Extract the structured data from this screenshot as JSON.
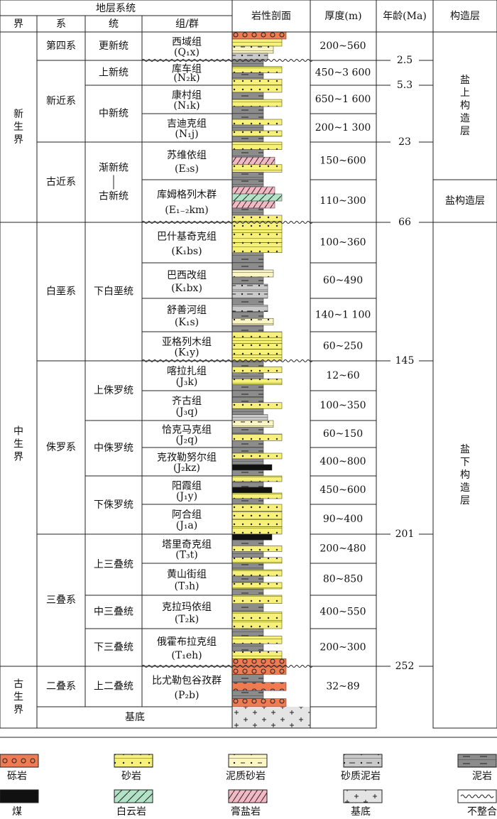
{
  "header": {
    "group": "地层系统",
    "erathem": "界",
    "system": "系",
    "series": "统",
    "formation": "组/群",
    "lithology": "岩性剖面",
    "thickness": "厚度(m)",
    "age": "年龄(Ma)",
    "tectonic": "构造层"
  },
  "erathems": [
    {
      "name": "新生界",
      "systems": [
        {
          "name": "第四系",
          "series": [
            {
              "name": [
                "更新统"
              ],
              "formations": [
                {
                  "name": "西域组",
                  "code": "(Q₁x)",
                  "thickness": "200~560",
                  "base_age": "2.5"
                }
              ]
            }
          ]
        },
        {
          "name": "新近系",
          "series": [
            {
              "name": [
                "上新统"
              ],
              "formations": [
                {
                  "name": "库车组",
                  "code": "(N₂k)",
                  "thickness": "450~3 600",
                  "base_age": "5.3"
                }
              ]
            },
            {
              "name": [
                "中新统"
              ],
              "formations": [
                {
                  "name": "康村组",
                  "code": "(N₁k)",
                  "thickness": "650~1 600"
                },
                {
                  "name": "吉迪克组",
                  "code": "(N₁j)",
                  "thickness": "200~1 300",
                  "base_age": "23"
                }
              ]
            }
          ]
        },
        {
          "name": "古近系",
          "series": [
            {
              "name": [
                "渐新统",
                "古新统"
              ],
              "formations": [
                {
                  "name": "苏维依组",
                  "code": "(E₃s)",
                  "thickness": "150~600"
                },
                {
                  "name": "库姆格列木群",
                  "code": "(E₁₋₂km)",
                  "thickness": "110~300",
                  "base_age": "66"
                }
              ]
            }
          ]
        }
      ]
    },
    {
      "name": "中生界",
      "systems": [
        {
          "name": "白垩系",
          "series": [
            {
              "name": [
                "下白垩统"
              ],
              "formations": [
                {
                  "name": "巴什基奇克组",
                  "code": "(K₁bs)",
                  "thickness": "100~360"
                },
                {
                  "name": "巴西改组",
                  "code": "(K₁bx)",
                  "thickness": "60~490"
                },
                {
                  "name": "舒善河组",
                  "code": "(K₁s)",
                  "thickness": "140~1 100"
                },
                {
                  "name": "亚格列木组",
                  "code": "(K₁y)",
                  "thickness": "60~250",
                  "base_age": "145"
                }
              ]
            }
          ]
        },
        {
          "name": "侏罗系",
          "series": [
            {
              "name": [
                "上侏罗统"
              ],
              "formations": [
                {
                  "name": "喀拉扎组",
                  "code": "(J₃k)",
                  "thickness": "12~60"
                },
                {
                  "name": "齐古组",
                  "code": "(J₃q)",
                  "thickness": "100~350"
                }
              ]
            },
            {
              "name": [
                "中侏罗统"
              ],
              "formations": [
                {
                  "name": "恰克马克组",
                  "code": "(J₂q)",
                  "thickness": "60~150"
                },
                {
                  "name": "克孜勒努尔组",
                  "code": "(J₂kz)",
                  "thickness": "400~800"
                }
              ]
            },
            {
              "name": [
                "下侏罗统"
              ],
              "formations": [
                {
                  "name": "阳霞组",
                  "code": "(J₁y)",
                  "thickness": "450~600"
                },
                {
                  "name": "阿合组",
                  "code": "(J₁a)",
                  "thickness": "90~400",
                  "base_age": "201"
                }
              ]
            }
          ]
        },
        {
          "name": "三叠系",
          "series": [
            {
              "name": [
                "上三叠统"
              ],
              "formations": [
                {
                  "name": "塔里奇克组",
                  "code": "(T₃t)",
                  "thickness": "200~480"
                },
                {
                  "name": "黄山街组",
                  "code": "(T₃h)",
                  "thickness": "80~850"
                }
              ]
            },
            {
              "name": [
                "中三叠统"
              ],
              "formations": [
                {
                  "name": "克拉玛依组",
                  "code": "(T₂k)",
                  "thickness": "400~550"
                }
              ]
            },
            {
              "name": [
                "下三叠统"
              ],
              "formations": [
                {
                  "name": "俄霍布拉克组",
                  "code": "(T₁eh)",
                  "thickness": "200~300",
                  "base_age": "252"
                }
              ]
            }
          ]
        }
      ]
    },
    {
      "name": "古生界",
      "systems": [
        {
          "name": "二叠系",
          "series": [
            {
              "name": [
                "上二叠统"
              ],
              "formations": [
                {
                  "name": "比尤勒包谷孜群",
                  "code": "(P₂b)",
                  "thickness": "32~89"
                }
              ]
            }
          ]
        }
      ]
    }
  ],
  "basement": "基底",
  "tectonic_layers": [
    "盐上构造层",
    "盐构造层",
    "盐下构造层"
  ],
  "legend": [
    "砾岩",
    "砂岩",
    "泥质砂岩",
    "砂质泥岩",
    "泥岩",
    "煤",
    "白云岩",
    "膏盐岩",
    "基底",
    "不整合"
  ]
}
